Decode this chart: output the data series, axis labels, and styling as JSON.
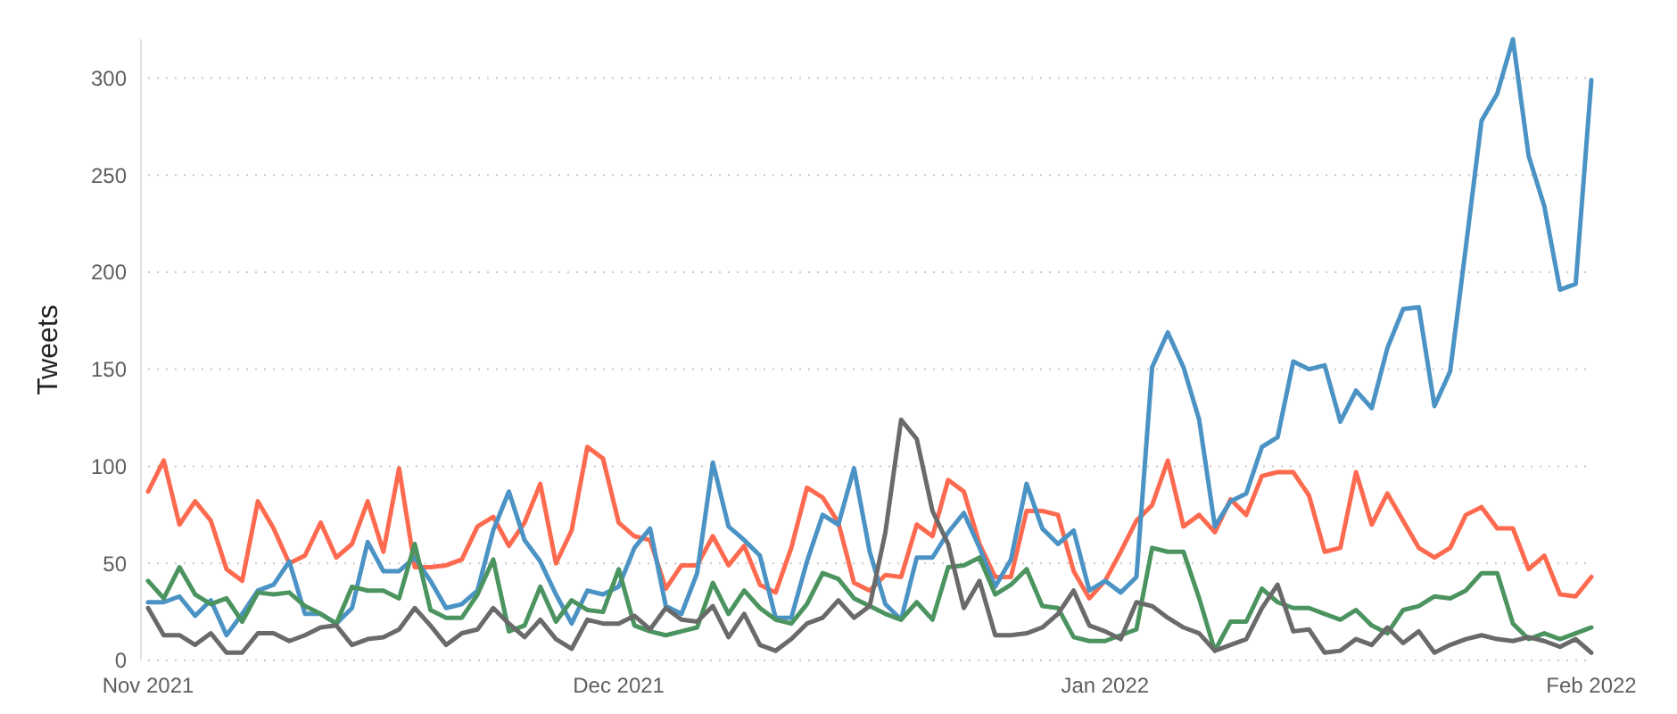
{
  "chart_data": {
    "type": "line",
    "ylabel": "Tweets",
    "x": [
      "2021-11-01",
      "2021-11-02",
      "2021-11-03",
      "2021-11-04",
      "2021-11-05",
      "2021-11-06",
      "2021-11-07",
      "2021-11-08",
      "2021-11-09",
      "2021-11-10",
      "2021-11-11",
      "2021-11-12",
      "2021-11-13",
      "2021-11-14",
      "2021-11-15",
      "2021-11-16",
      "2021-11-17",
      "2021-11-18",
      "2021-11-19",
      "2021-11-20",
      "2021-11-21",
      "2021-11-22",
      "2021-11-23",
      "2021-11-24",
      "2021-11-25",
      "2021-11-26",
      "2021-11-27",
      "2021-11-28",
      "2021-11-29",
      "2021-11-30",
      "2021-12-01",
      "2021-12-02",
      "2021-12-03",
      "2021-12-04",
      "2021-12-05",
      "2021-12-06",
      "2021-12-07",
      "2021-12-08",
      "2021-12-09",
      "2021-12-10",
      "2021-12-11",
      "2021-12-12",
      "2021-12-13",
      "2021-12-14",
      "2021-12-15",
      "2021-12-16",
      "2021-12-17",
      "2021-12-18",
      "2021-12-19",
      "2021-12-20",
      "2021-12-21",
      "2021-12-22",
      "2021-12-23",
      "2021-12-24",
      "2021-12-25",
      "2021-12-26",
      "2021-12-27",
      "2021-12-28",
      "2021-12-29",
      "2021-12-30",
      "2021-12-31",
      "2022-01-01",
      "2022-01-02",
      "2022-01-03",
      "2022-01-04",
      "2022-01-05",
      "2022-01-06",
      "2022-01-07",
      "2022-01-08",
      "2022-01-09",
      "2022-01-10",
      "2022-01-11",
      "2022-01-12",
      "2022-01-13",
      "2022-01-14",
      "2022-01-15",
      "2022-01-16",
      "2022-01-17",
      "2022-01-18",
      "2022-01-19",
      "2022-01-20",
      "2022-01-21",
      "2022-01-22",
      "2022-01-23",
      "2022-01-24",
      "2022-01-25",
      "2022-01-26",
      "2022-01-27",
      "2022-01-28",
      "2022-01-29",
      "2022-01-30",
      "2022-01-31",
      "2022-02-01"
    ],
    "series": [
      {
        "color": "#fd6a4f",
        "values": [
          87,
          103,
          70,
          82,
          72,
          47,
          41,
          82,
          68,
          50,
          54,
          71,
          53,
          60,
          82,
          56,
          99,
          48,
          48,
          49,
          52,
          69,
          74,
          59,
          71,
          91,
          50,
          67,
          110,
          104,
          71,
          64,
          62,
          37,
          49,
          49,
          64,
          49,
          59,
          39,
          35,
          58,
          89,
          84,
          71,
          40,
          36,
          44,
          43,
          70,
          64,
          93,
          87,
          60,
          43,
          43,
          77,
          77,
          75,
          46,
          32,
          41,
          56,
          72,
          80,
          103,
          69,
          75,
          66,
          83,
          75,
          95,
          97,
          97,
          85,
          56,
          58,
          97,
          70,
          86,
          72,
          58,
          53,
          58,
          75,
          79,
          68,
          68,
          47,
          54,
          34,
          33,
          43
        ]
      },
      {
        "color": "#4b93c4",
        "values": [
          30,
          30,
          33,
          23,
          31,
          13,
          24,
          36,
          39,
          51,
          24,
          24,
          19,
          27,
          61,
          46,
          46,
          53,
          41,
          27,
          29,
          36,
          67,
          87,
          62,
          51,
          34,
          19,
          36,
          34,
          38,
          58,
          68,
          28,
          24,
          45,
          102,
          69,
          62,
          54,
          22,
          22,
          51,
          75,
          70,
          99,
          56,
          29,
          21,
          53,
          53,
          66,
          76,
          58,
          38,
          52,
          91,
          68,
          60,
          67,
          36,
          41,
          35,
          43,
          151,
          169,
          151,
          124,
          69,
          82,
          86,
          110,
          115,
          154,
          150,
          152,
          123,
          139,
          130,
          161,
          181,
          182,
          131,
          149,
          213,
          278,
          292,
          320,
          260,
          234,
          191,
          194,
          299
        ]
      },
      {
        "color": "#4b9460",
        "values": [
          41,
          32,
          48,
          34,
          29,
          32,
          20,
          35,
          34,
          35,
          28,
          24,
          19,
          38,
          36,
          36,
          32,
          60,
          26,
          22,
          22,
          34,
          52,
          15,
          18,
          38,
          20,
          31,
          26,
          25,
          47,
          18,
          15,
          13,
          15,
          17,
          40,
          24,
          36,
          27,
          21,
          19,
          29,
          45,
          42,
          32,
          28,
          24,
          21,
          30,
          21,
          48,
          49,
          53,
          34,
          39,
          47,
          28,
          27,
          12,
          10,
          10,
          13,
          16,
          58,
          56,
          56,
          32,
          5,
          20,
          20,
          37,
          30,
          27,
          27,
          24,
          21,
          26,
          18,
          14,
          26,
          28,
          33,
          32,
          36,
          45,
          45,
          19,
          11,
          14,
          11,
          14,
          17
        ]
      },
      {
        "color": "#6a6a6a",
        "values": [
          27,
          13,
          13,
          8,
          14,
          4,
          4,
          14,
          14,
          10,
          13,
          17,
          18,
          8,
          11,
          12,
          16,
          27,
          18,
          8,
          14,
          16,
          27,
          19,
          12,
          21,
          11,
          6,
          21,
          19,
          19,
          23,
          16,
          27,
          21,
          20,
          28,
          12,
          24,
          8,
          5,
          11,
          19,
          22,
          31,
          22,
          28,
          66,
          124,
          114,
          77,
          60,
          27,
          41,
          13,
          13,
          14,
          17,
          24,
          36,
          18,
          15,
          11,
          30,
          28,
          22,
          17,
          14,
          5,
          8,
          11,
          27,
          39,
          15,
          16,
          4,
          5,
          11,
          8,
          17,
          9,
          15,
          4,
          8,
          11,
          13,
          11,
          10,
          12,
          10,
          7,
          11,
          4
        ]
      }
    ],
    "xlim": [
      "2021-11-01",
      "2022-02-01"
    ],
    "xticks": [
      {
        "value": "2021-11-01",
        "label": "Nov 2021"
      },
      {
        "value": "2021-12-01",
        "label": "Dec 2021"
      },
      {
        "value": "2022-01-01",
        "label": "Jan 2022"
      },
      {
        "value": "2022-02-01",
        "label": "Feb 2022"
      }
    ],
    "ylim": [
      0,
      320
    ],
    "yticks": [
      0,
      50,
      100,
      150,
      200,
      250,
      300
    ],
    "grid": "y"
  }
}
